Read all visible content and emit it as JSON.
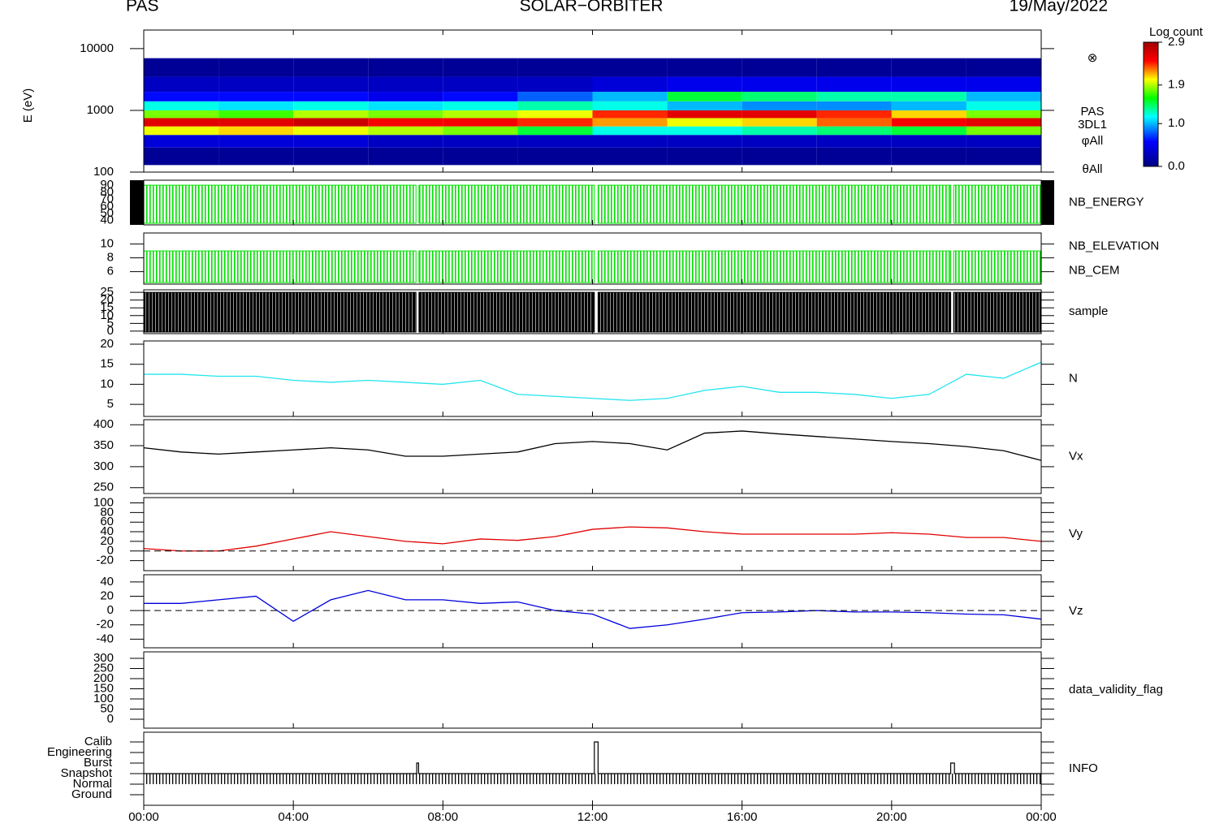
{
  "header": {
    "left": "PAS",
    "center": "SOLAR−ORBITER",
    "right": "19/May/2022"
  },
  "time_axis": {
    "xlim": [
      0,
      24
    ],
    "xticks": [
      {
        "value": 0,
        "label": "00:00"
      },
      {
        "value": 4,
        "label": "04:00"
      },
      {
        "value": 8,
        "label": "08:00"
      },
      {
        "value": 12,
        "label": "12:00"
      },
      {
        "value": 16,
        "label": "16:00"
      },
      {
        "value": 20,
        "label": "20:00"
      },
      {
        "value": 24,
        "label": "00:00"
      }
    ]
  },
  "chart_data": [
    {
      "type": "heatmap",
      "ylabel": "E (eV)",
      "log_y": true,
      "ylim": [
        100,
        20000
      ],
      "yticks": [
        100,
        1000,
        10000
      ],
      "time_bins": [
        0,
        2,
        4,
        6,
        8,
        10,
        12,
        14,
        16,
        18,
        20,
        22,
        24
      ],
      "energy_bins": [
        130,
        250,
        400,
        550,
        750,
        1000,
        1400,
        2000,
        3500,
        7000,
        15000
      ],
      "z": [
        [
          0.1,
          0.4,
          2.0,
          2.6,
          1.8,
          1.2,
          0.6,
          0.3,
          0.1,
          null
        ],
        [
          0.1,
          0.4,
          2.1,
          2.6,
          1.7,
          1.1,
          0.6,
          0.3,
          0.1,
          null
        ],
        [
          0.1,
          0.4,
          2.0,
          2.7,
          1.9,
          1.2,
          0.6,
          0.3,
          0.1,
          null
        ],
        [
          0.1,
          0.3,
          1.9,
          2.5,
          1.8,
          1.1,
          0.5,
          0.3,
          0.1,
          null
        ],
        [
          0.1,
          0.3,
          1.8,
          2.5,
          1.9,
          1.2,
          0.6,
          0.3,
          0.1,
          null
        ],
        [
          0.1,
          0.3,
          1.5,
          2.4,
          2.0,
          1.3,
          0.8,
          0.3,
          0.1,
          null
        ],
        [
          0.1,
          0.3,
          1.2,
          2.2,
          2.4,
          1.2,
          1.0,
          0.4,
          0.1,
          null
        ],
        [
          0.1,
          0.3,
          1.2,
          2.0,
          2.6,
          1.0,
          1.5,
          0.5,
          0.1,
          null
        ],
        [
          0.1,
          0.3,
          1.3,
          2.1,
          2.6,
          0.9,
          1.4,
          0.5,
          0.1,
          null
        ],
        [
          0.1,
          0.3,
          1.4,
          2.3,
          2.4,
          0.9,
          1.3,
          0.5,
          0.1,
          null
        ],
        [
          0.1,
          0.3,
          1.5,
          2.5,
          2.1,
          1.0,
          1.3,
          0.5,
          0.1,
          null
        ],
        [
          0.1,
          0.3,
          1.8,
          2.6,
          1.8,
          1.2,
          1.0,
          0.5,
          0.1,
          null
        ]
      ],
      "colorbar": {
        "label": "Log count",
        "zlim": [
          0,
          2.9
        ],
        "ticks": [
          {
            "value": 0,
            "label": "0.0"
          },
          {
            "value": 1,
            "label": "1.0"
          },
          {
            "value": 1.9,
            "label": "1.9"
          },
          {
            "value": 2.9,
            "label": "2.9"
          }
        ]
      },
      "annotations": [
        "⊗",
        "PAS",
        "3DL1",
        "φAll",
        "θAll"
      ]
    },
    {
      "type": "comb",
      "ylim": [
        34,
        97
      ],
      "yticks": [
        40,
        50,
        60,
        70,
        80,
        90
      ],
      "x": [
        0,
        7.28,
        7.32,
        7.36,
        12.05,
        12.1,
        12.15,
        21.58,
        21.62,
        21.66,
        24
      ],
      "series": [
        {
          "name": "NB_ENERGY",
          "color": "#00e000",
          "values": [
            90,
            90,
            null,
            90,
            90,
            null,
            90,
            90,
            null,
            90,
            90
          ]
        }
      ]
    },
    {
      "type": "comb",
      "ylim": [
        4.2,
        11.6
      ],
      "yticks": [
        6,
        8,
        10
      ],
      "x": [
        0,
        7.28,
        7.32,
        7.36,
        12.05,
        12.1,
        12.15,
        21.58,
        21.62,
        21.66,
        24
      ],
      "series": [
        {
          "name": "NB_ELEVATION",
          "color": "#00e000",
          "values": [
            9,
            9,
            null,
            9,
            9,
            null,
            9,
            9,
            null,
            9,
            9
          ]
        },
        {
          "name": "NB_CEM",
          "color": "#0000cc",
          "values": [
            null,
            null,
            null,
            null,
            null,
            null,
            null,
            null,
            null,
            null,
            null
          ]
        }
      ]
    },
    {
      "type": "area",
      "ylim": [
        -1.6,
        26.6
      ],
      "yticks": [
        0,
        5,
        10,
        15,
        20,
        25
      ],
      "x": [
        0,
        7.28,
        7.32,
        7.36,
        12.05,
        12.1,
        12.15,
        21.58,
        21.62,
        21.66,
        24
      ],
      "series": [
        {
          "name": "sample",
          "color": "#000000",
          "values": [
            25,
            25,
            null,
            25,
            25,
            null,
            25,
            25,
            null,
            25,
            25
          ]
        }
      ]
    },
    {
      "type": "line",
      "ylim": [
        2,
        20.8
      ],
      "yticks": [
        5,
        10,
        15,
        20
      ],
      "x": [
        0,
        1,
        2,
        3,
        4,
        5,
        6,
        7,
        8,
        9,
        10,
        11,
        12,
        13,
        14,
        15,
        16,
        17,
        18,
        19,
        20,
        21,
        22,
        23,
        24
      ],
      "series": [
        {
          "name": "N",
          "color": "#22e5ee",
          "values": [
            12.5,
            12.5,
            12,
            12,
            11,
            10.5,
            11,
            10.5,
            10,
            11,
            7.5,
            7,
            6.5,
            6,
            6.5,
            8.5,
            9.5,
            8,
            8,
            7.5,
            6.5,
            7.5,
            12.5,
            11.5,
            15.5
          ]
        }
      ]
    },
    {
      "type": "line",
      "ylim": [
        236,
        412
      ],
      "yticks": [
        250,
        300,
        350,
        400
      ],
      "x": [
        0,
        1,
        2,
        3,
        4,
        5,
        6,
        7,
        8,
        9,
        10,
        11,
        12,
        13,
        14,
        15,
        16,
        17,
        18,
        19,
        20,
        21,
        22,
        23,
        24
      ],
      "series": [
        {
          "name": "Vx",
          "color": "#000000",
          "values": [
            345,
            335,
            330,
            335,
            340,
            345,
            340,
            325,
            325,
            330,
            335,
            355,
            360,
            355,
            340,
            380,
            385,
            378,
            372,
            366,
            360,
            355,
            348,
            338,
            315
          ]
        }
      ]
    },
    {
      "type": "line",
      "zero_line": true,
      "ylim": [
        -41,
        111
      ],
      "yticks": [
        -20,
        0,
        20,
        40,
        60,
        80,
        100
      ],
      "x": [
        0,
        1,
        2,
        3,
        4,
        5,
        6,
        7,
        8,
        9,
        10,
        11,
        12,
        13,
        14,
        15,
        16,
        17,
        18,
        19,
        20,
        21,
        22,
        23,
        24
      ],
      "series": [
        {
          "name": "Vy",
          "color": "#e00000",
          "values": [
            5,
            0,
            0,
            10,
            25,
            40,
            30,
            20,
            15,
            25,
            22,
            30,
            45,
            50,
            48,
            40,
            35,
            35,
            35,
            35,
            38,
            35,
            28,
            28,
            20
          ]
        }
      ]
    },
    {
      "type": "line",
      "zero_line": true,
      "ylim": [
        -52,
        50
      ],
      "yticks": [
        -40,
        -20,
        0,
        20,
        40
      ],
      "x": [
        0,
        1,
        2,
        3,
        4,
        5,
        6,
        7,
        8,
        9,
        10,
        11,
        12,
        13,
        14,
        15,
        16,
        17,
        18,
        19,
        20,
        21,
        22,
        23,
        24
      ],
      "series": [
        {
          "name": "Vz",
          "color": "#0000dd",
          "values": [
            10,
            10,
            15,
            20,
            -15,
            15,
            28,
            15,
            15,
            10,
            12,
            0,
            -5,
            -25,
            -20,
            -12,
            -3,
            -2,
            0,
            -2,
            -2,
            -3,
            -5,
            -6,
            -12
          ]
        }
      ]
    },
    {
      "type": "line",
      "ylim": [
        -44,
        332
      ],
      "yticks": [
        0,
        50,
        100,
        150,
        200,
        250,
        300
      ],
      "x": [
        0,
        24
      ],
      "series": [
        {
          "name": "data_validity_flag",
          "color": "#000000",
          "values": [
            null,
            null
          ]
        }
      ]
    },
    {
      "type": "step",
      "ylim": [
        -1,
        5.92
      ],
      "levels": [
        "Ground",
        "Normal",
        "Snapshot",
        "Burst",
        "Engineering",
        "Calib"
      ],
      "x": [
        0,
        7.3,
        7.35,
        12.05,
        12.15,
        21.58,
        21.68,
        24
      ],
      "series": [
        {
          "name": "INFO",
          "color": "#000000",
          "values": [
            2,
            3,
            2,
            5,
            2,
            3,
            2,
            2
          ]
        }
      ]
    }
  ]
}
